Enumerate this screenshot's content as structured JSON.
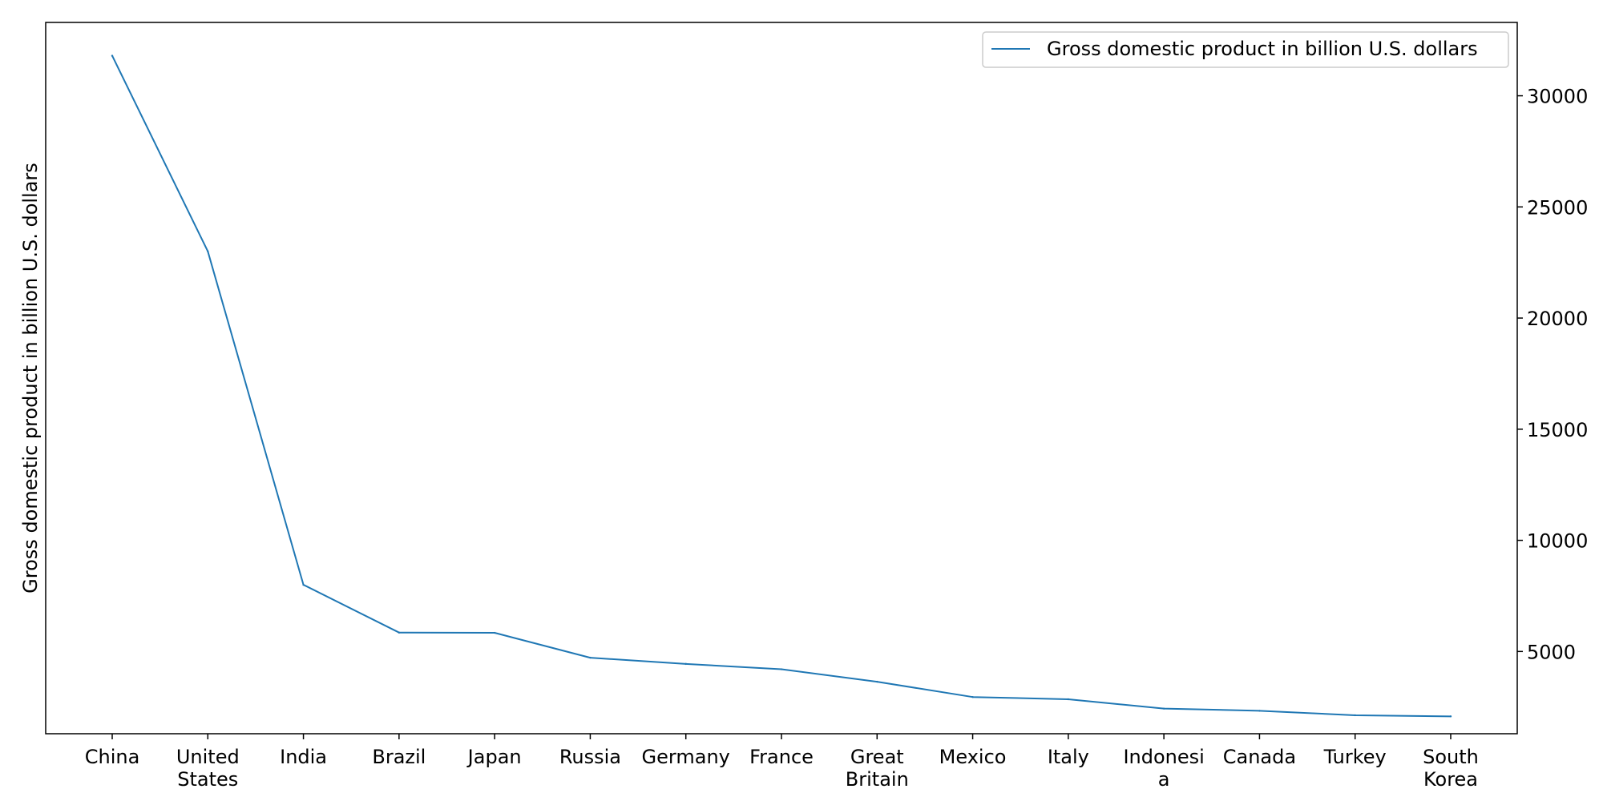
{
  "chart_data": {
    "type": "line",
    "title": "",
    "xlabel": "",
    "ylabel": "Gross domestic product in billion U.S. dollars",
    "y_axis_side": "right",
    "ylabel_side": "left",
    "categories": [
      [
        "China"
      ],
      [
        "United",
        "States"
      ],
      [
        "India"
      ],
      [
        "Brazil"
      ],
      [
        "Japan"
      ],
      [
        "Russia"
      ],
      [
        "Germany"
      ],
      [
        "France"
      ],
      [
        "Great",
        "Britain"
      ],
      [
        "Mexico"
      ],
      [
        "Italy"
      ],
      [
        "Indonesi",
        "a"
      ],
      [
        "Canada"
      ],
      [
        "Turkey"
      ],
      [
        "South",
        "Korea"
      ]
    ],
    "series": [
      {
        "name": "Gross domestic product in billion U.S. dollars",
        "color": "#1f77b4",
        "values": [
          31800,
          23000,
          8000,
          5850,
          5840,
          4720,
          4440,
          4200,
          3640,
          2950,
          2850,
          2430,
          2330,
          2130,
          2080
        ]
      }
    ],
    "yticks": [
      5000,
      10000,
      15000,
      20000,
      25000,
      30000
    ],
    "ylim": [
      1300,
      33300
    ],
    "grid": false,
    "legend_position": "upper right"
  }
}
